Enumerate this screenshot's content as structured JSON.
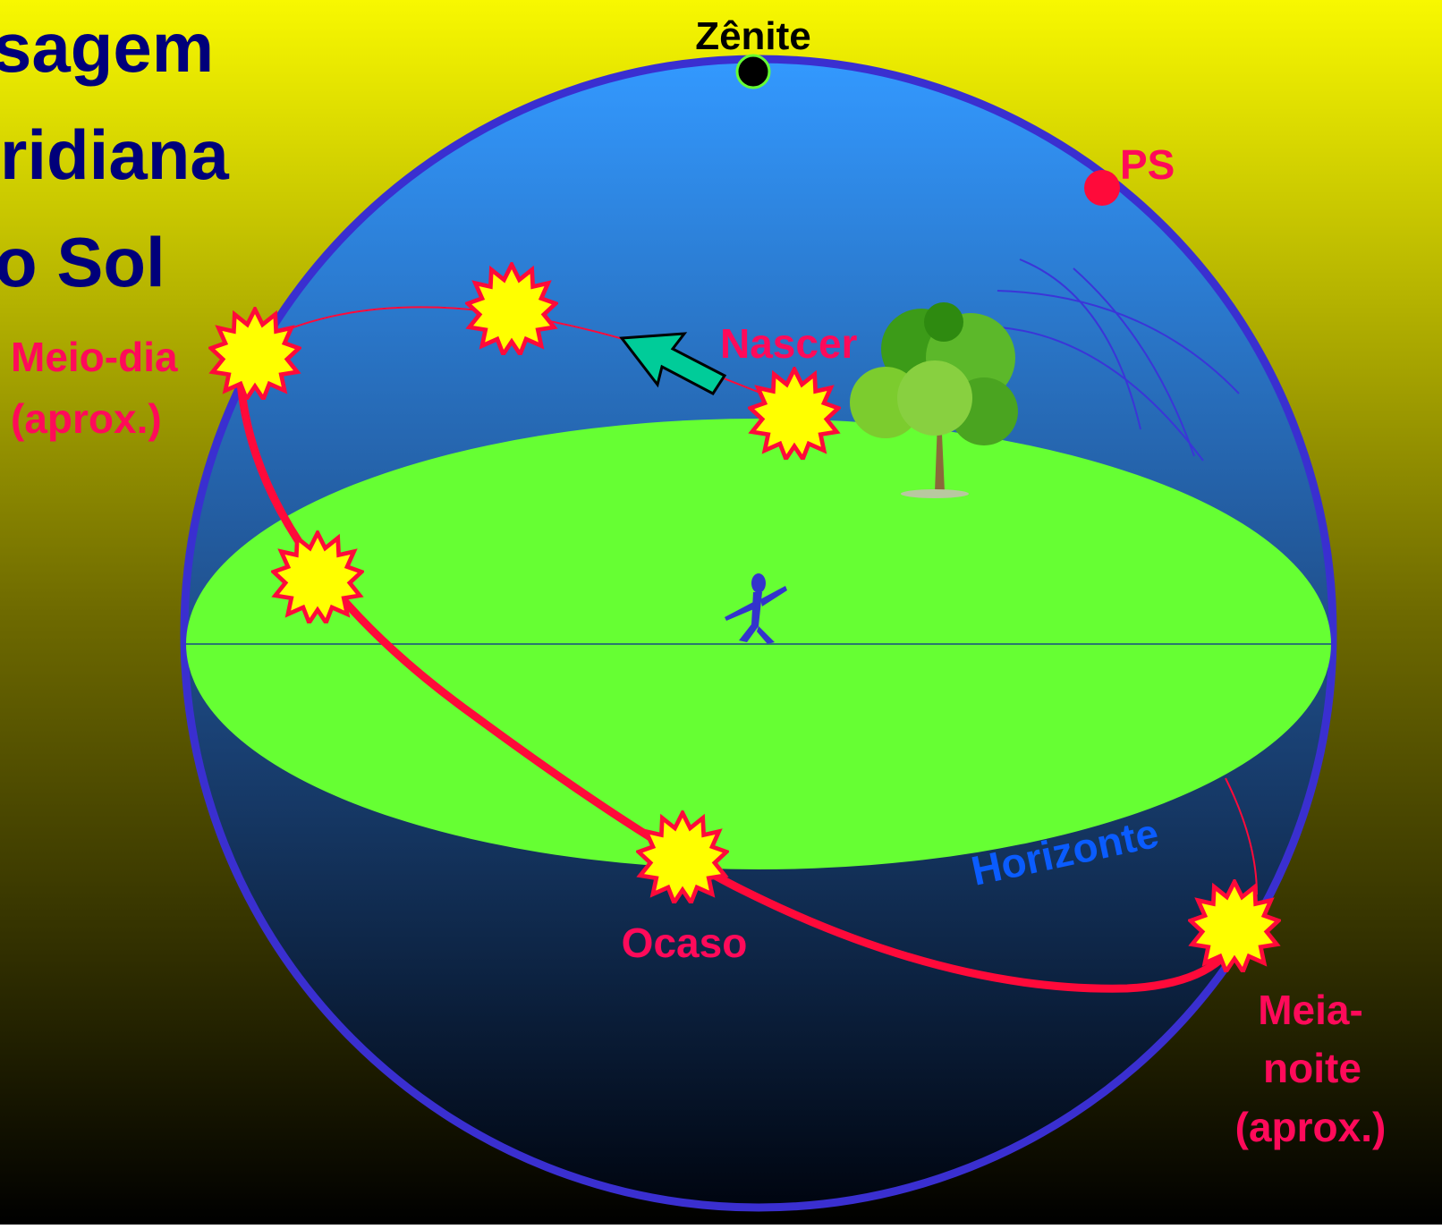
{
  "title": {
    "lines": [
      "sagem",
      "ridiana",
      "o Sol"
    ]
  },
  "labels": {
    "zenith": "Zênite",
    "pole": "PS",
    "noon": "Meio-dia",
    "noon_note": "(aprox.)",
    "rise": "Nascer",
    "set": "Ocaso",
    "horizon": "Horizonte",
    "midnight_1": "Meia-",
    "midnight_2": "noite",
    "midnight_note": "(aprox.)"
  }
}
